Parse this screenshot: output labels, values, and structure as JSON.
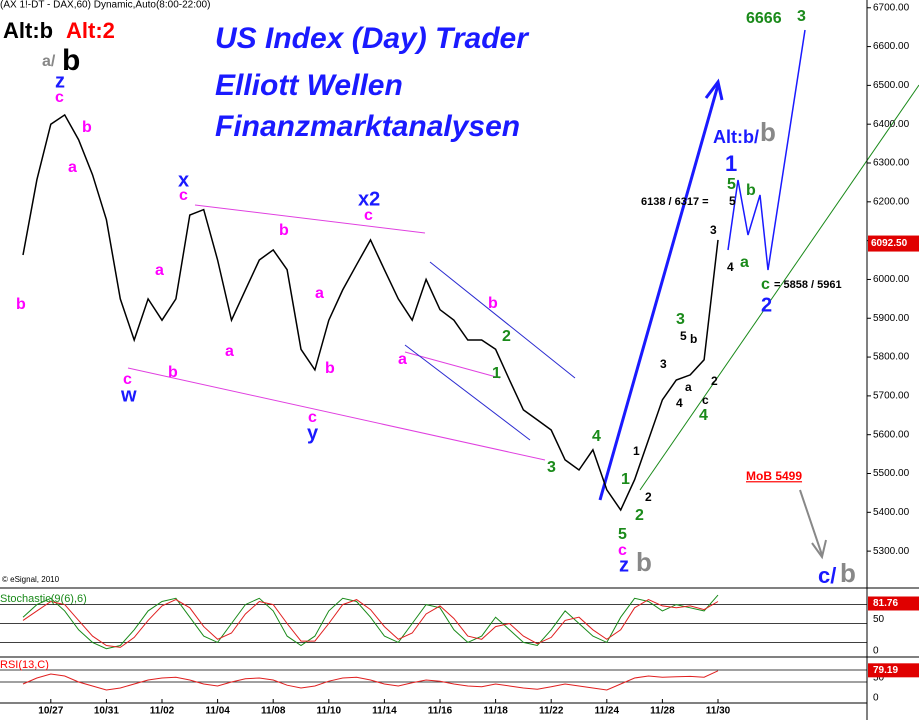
{
  "chart_data": {
    "type": "line",
    "color": "#000000",
    "categories": [
      null,
      null,
      "10/27",
      null,
      null,
      null,
      "10/31",
      null,
      null,
      null,
      "11/02",
      null,
      null,
      null,
      "11/04",
      null,
      null,
      null,
      "11/08",
      null,
      null,
      null,
      "11/10",
      null,
      null,
      null,
      "11/14",
      null,
      null,
      null,
      "11/16",
      null,
      null,
      null,
      "11/18",
      null,
      null,
      null,
      "11/22",
      null,
      null,
      null,
      "11/24",
      null,
      null,
      null,
      "11/28",
      null,
      null,
      null,
      "11/30"
    ],
    "values": [
      6063,
      6257,
      6400,
      6424,
      6360,
      6270,
      6154,
      5950,
      5844,
      5950,
      5895,
      5950,
      6166,
      6180,
      6050,
      5895,
      5973,
      6050,
      6076,
      6025,
      5820,
      5767,
      5895,
      5973,
      6038,
      6102,
      6025,
      5950,
      5895,
      6000,
      5922,
      5895,
      5844,
      5844,
      5820,
      5741,
      5664,
      5638,
      5612,
      5535,
      5509,
      5561,
      5458,
      5406,
      5484,
      5587,
      5690,
      5741,
      5754,
      5793,
      6102
    ],
    "ylim": [
      5205,
      6720
    ],
    "yticks": [
      {
        "value": 5300,
        "label": "5300.00"
      },
      {
        "value": 5400,
        "label": "5400.00"
      },
      {
        "value": 5500,
        "label": "5500.00"
      },
      {
        "value": 5600,
        "label": "5600.00"
      },
      {
        "value": 5700,
        "label": "5700.00"
      },
      {
        "value": 5800,
        "label": "5800.00"
      },
      {
        "value": 5900,
        "label": "5900.00"
      },
      {
        "value": 6000,
        "label": "6000.00"
      },
      {
        "value": 6100,
        "label": "6100.00"
      },
      {
        "value": 6200,
        "label": "6200.00"
      },
      {
        "value": 6300,
        "label": "6300.00"
      },
      {
        "value": 6400,
        "label": "6400.00"
      },
      {
        "value": 6500,
        "label": "6500.00"
      },
      {
        "value": 6600,
        "label": "6600.00"
      },
      {
        "value": 6700,
        "label": "6700.00"
      }
    ],
    "last_price": {
      "value": 6092.5,
      "label": "6092.50"
    },
    "annotations": [
      {
        "text": "Alt:b",
        "color": "#000000"
      },
      {
        "text": "Alt:2",
        "color": "#ff0000"
      },
      {
        "text": "US Index (Day) Trader",
        "color": "#1a1aff"
      },
      {
        "text": "Elliott Wellen",
        "color": "#1a1aff"
      },
      {
        "text": "Finanzmarktanalysen",
        "color": "#1a1aff"
      },
      {
        "text": "a/",
        "color": "#888888"
      },
      {
        "text": "b",
        "color": "#000000"
      },
      {
        "text": "z",
        "color": "#1a1aff"
      },
      {
        "text": "c",
        "color": "#ff00ff"
      },
      {
        "text": "b",
        "color": "#ff00ff"
      },
      {
        "text": "a",
        "color": "#ff00ff"
      },
      {
        "text": "b",
        "color": "#ff00ff"
      },
      {
        "text": "x",
        "color": "#1a1aff"
      },
      {
        "text": "c",
        "color": "#ff00ff"
      },
      {
        "text": "a",
        "color": "#ff00ff"
      },
      {
        "text": "a",
        "color": "#ff00ff"
      },
      {
        "text": "b",
        "color": "#ff00ff"
      },
      {
        "text": "c",
        "color": "#ff00ff"
      },
      {
        "text": "w",
        "color": "#1a1aff"
      },
      {
        "text": "b",
        "color": "#ff00ff"
      },
      {
        "text": "a",
        "color": "#ff00ff"
      },
      {
        "text": "b",
        "color": "#ff00ff"
      },
      {
        "text": "c",
        "color": "#ff00ff"
      },
      {
        "text": "y",
        "color": "#1a1aff"
      },
      {
        "text": "x2",
        "color": "#1a1aff"
      },
      {
        "text": "c",
        "color": "#ff00ff"
      },
      {
        "text": "a",
        "color": "#ff00ff"
      },
      {
        "text": "b",
        "color": "#ff00ff"
      },
      {
        "text": "2",
        "color": "#1a8a1a"
      },
      {
        "text": "1",
        "color": "#1a8a1a"
      },
      {
        "text": "3",
        "color": "#1a8a1a"
      },
      {
        "text": "4",
        "color": "#1a8a1a"
      },
      {
        "text": "5",
        "color": "#1a8a1a"
      },
      {
        "text": "c",
        "color": "#ff00ff"
      },
      {
        "text": "z",
        "color": "#1a1aff"
      },
      {
        "text": "b",
        "color": "#888888"
      },
      {
        "text": "1",
        "color": "#000000"
      },
      {
        "text": "2",
        "color": "#000000"
      },
      {
        "text": "1",
        "color": "#1a8a1a"
      },
      {
        "text": "2",
        "color": "#1a8a1a"
      },
      {
        "text": "3",
        "color": "#000000"
      },
      {
        "text": "4",
        "color": "#000000"
      },
      {
        "text": "5",
        "color": "#000000"
      },
      {
        "text": "b",
        "color": "#000000"
      },
      {
        "text": "a",
        "color": "#000000"
      },
      {
        "text": "3",
        "color": "#1a8a1a"
      },
      {
        "text": "c",
        "color": "#000000"
      },
      {
        "text": "2",
        "color": "#000000"
      },
      {
        "text": "4",
        "color": "#1a8a1a"
      },
      {
        "text": "3",
        "color": "#000000"
      },
      {
        "text": "4",
        "color": "#000000"
      },
      {
        "text": "Alt:b/",
        "color": "#1a1aff"
      },
      {
        "text": "b",
        "color": "#888888"
      },
      {
        "text": "1",
        "color": "#1a1aff"
      },
      {
        "text": "5",
        "color": "#1a8a1a"
      },
      {
        "text": "6138 / 6317 =",
        "color": "#000000"
      },
      {
        "text": "5",
        "color": "#000000"
      },
      {
        "text": "b",
        "color": "#1a8a1a"
      },
      {
        "text": "a",
        "color": "#1a8a1a"
      },
      {
        "text": "c",
        "color": "#1a8a1a"
      },
      {
        "text": "= 5858 / 5961",
        "color": "#000000"
      },
      {
        "text": "2",
        "color": "#1a1aff"
      },
      {
        "text": "6666",
        "color": "#1a8a1a"
      },
      {
        "text": "3",
        "color": "#1a8a1a"
      },
      {
        "text": "MoB 5499",
        "color": "#ff0000"
      },
      {
        "text": "c/",
        "color": "#1a1aff"
      },
      {
        "text": "b",
        "color": "#888888"
      },
      {
        "text": "© eSignal, 2010",
        "color": "#000000"
      },
      {
        "text": "(AX 1!-DT - DAX,60) Dynamic,Auto(8:00-22:00)",
        "color": "#000000"
      },
      {
        "text": "Stochastic(9(6),6)",
        "color": "#1a8a1a"
      },
      {
        "text": "RSI(13,C)",
        "color": "#ff0000"
      }
    ],
    "stochastic": {
      "ylim": [
        0,
        100
      ],
      "yticks": [
        50,
        0
      ],
      "levels": [
        80,
        50,
        20
      ],
      "last": 81.76,
      "series": [
        {
          "color": "#1a8a1a",
          "values": [
            60,
            80,
            90,
            70,
            40,
            20,
            10,
            15,
            40,
            70,
            85,
            90,
            60,
            30,
            20,
            50,
            80,
            90,
            70,
            30,
            15,
            30,
            70,
            90,
            85,
            60,
            30,
            20,
            50,
            80,
            75,
            40,
            20,
            30,
            60,
            40,
            20,
            15,
            40,
            70,
            50,
            30,
            20,
            60,
            90,
            85,
            70,
            80,
            75,
            70,
            95
          ]
        },
        {
          "color": "#e02020",
          "values": [
            55,
            70,
            85,
            80,
            55,
            30,
            15,
            12,
            28,
            55,
            78,
            88,
            75,
            45,
            25,
            35,
            65,
            85,
            80,
            50,
            22,
            22,
            50,
            80,
            88,
            72,
            45,
            25,
            35,
            65,
            78,
            58,
            30,
            25,
            45,
            50,
            30,
            18,
            28,
            55,
            60,
            40,
            25,
            40,
            75,
            88,
            78,
            75,
            78,
            72,
            85
          ]
        }
      ]
    },
    "rsi": {
      "ylim": [
        0,
        100
      ],
      "yticks": [
        50,
        0
      ],
      "levels": [
        80,
        50
      ],
      "last": 79.19,
      "color": "#e02020",
      "values": [
        45,
        60,
        70,
        65,
        50,
        40,
        30,
        35,
        45,
        55,
        60,
        62,
        55,
        45,
        40,
        50,
        58,
        60,
        55,
        42,
        35,
        40,
        52,
        60,
        62,
        55,
        45,
        40,
        48,
        55,
        52,
        45,
        40,
        38,
        45,
        40,
        35,
        32,
        38,
        45,
        40,
        35,
        30,
        45,
        60,
        65,
        62,
        63,
        64,
        62,
        78
      ]
    }
  }
}
